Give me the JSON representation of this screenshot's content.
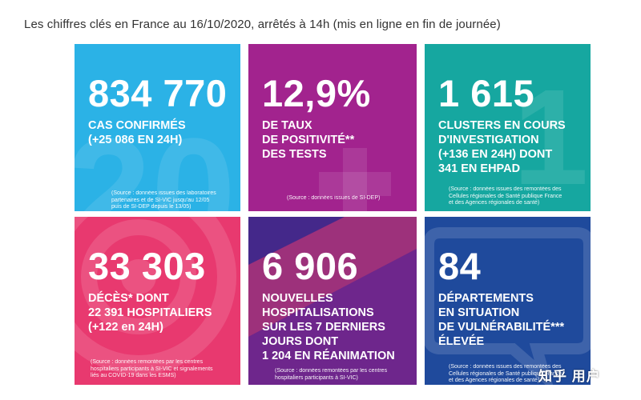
{
  "heading": "Les chiffres clés en France au 16/10/2020, arrêtés à 14h (mis en ligne en fin de journée)",
  "cards": [
    {
      "value": "834 770",
      "label": "CAS CONFIRMÉS\n(+25 086 EN 24H)",
      "source": "(Source : données issues des laboratoires\npartenaires et de SI-VIC jusqu'au 12/05\npuis de SI-DEP depuis le 13/05)",
      "color": "#2bb2e6"
    },
    {
      "value": "12,9%",
      "label": "DE TAUX\nDE POSITIVITÉ**\nDES TESTS",
      "source": "(Source : données issues de SI-DEP)",
      "color": "#a2238e"
    },
    {
      "value": "1 615",
      "label": "CLUSTERS EN COURS\nD'INVESTIGATION\n(+136 EN 24H) DONT\n341 EN EHPAD",
      "source": "(Source : données issues des remontées des\nCellules régionales de Santé publique France\net des Agences régionales de santé)",
      "color": "#16a7a0"
    },
    {
      "value": "33 303",
      "label": "DÉCÈS* DONT\n22 391 HOSPITALIERS\n(+122 en 24H)",
      "source": "(Source : données remontées par les centres\nhospitaliers participants à SI-VIC et signalements\nliés au COVID-19 dans les ESMS)",
      "color": "#e8396f"
    },
    {
      "value": "6 906",
      "label": "NOUVELLES\nHOSPITALISATIONS\nSUR LES 7 DERNIERS\nJOURS DONT\n1 204 EN RÉANIMATION",
      "source": "(Source : données remontées par les centres\nhospitaliers participants à SI-VIC)",
      "color": "#44288a"
    },
    {
      "value": "84",
      "label": "DÉPARTEMENTS\nEN SITUATION\nDE VULNÉRABILITÉ***\nÉLEVÉE",
      "source": "(Source : données issues des remontées des\nCellules régionales de Santé publique France\net des Agences régionales de santé)",
      "color": "#1f4a9c"
    }
  ],
  "watermark": "知乎 用户"
}
